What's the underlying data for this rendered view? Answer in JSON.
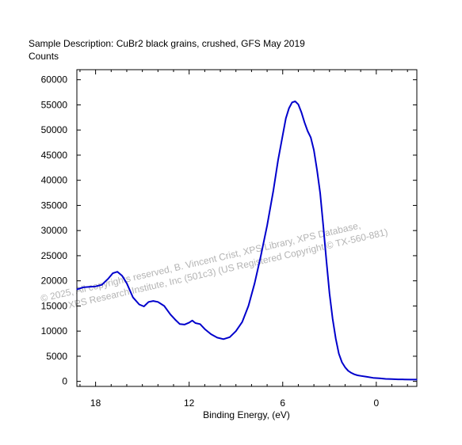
{
  "header": {
    "description": "Sample Description:  CuBr2 black grains, crushed, GFS May 2019",
    "counts_label": "Counts"
  },
  "watermark": {
    "line1": "© 2025,  All copyrights reserved,   B. Vincent Crist,  XPS Library, XPS Database,",
    "line2": "XPS Research Institute, Inc (501c3)   (US Registered Copyright © TX-560-881)"
  },
  "chart_data": {
    "type": "line",
    "title": "",
    "xlabel": "Binding Energy, (eV)",
    "ylabel": "Counts",
    "x_reversed": true,
    "xlim": [
      19.2,
      -2.6
    ],
    "ylim": [
      -1000,
      62000
    ],
    "x_ticks": [
      18,
      12,
      6,
      0
    ],
    "y_ticks": [
      0,
      5000,
      10000,
      15000,
      20000,
      25000,
      30000,
      35000,
      40000,
      45000,
      50000,
      55000,
      60000
    ],
    "grid": false,
    "line_color": "#0000cc",
    "series": [
      {
        "x": [
          19.2,
          18.8,
          18.4,
          18.0,
          17.6,
          17.2,
          16.9,
          16.6,
          16.3,
          16.0,
          15.6,
          15.2,
          14.9,
          14.6,
          14.3,
          14.0,
          13.6,
          13.2,
          12.9,
          12.6,
          12.3,
          12.0,
          11.8,
          11.6,
          11.3,
          11.0,
          10.6,
          10.2,
          9.8,
          9.4,
          9.0,
          8.6,
          8.2,
          7.8,
          7.4,
          7.0,
          6.6,
          6.3,
          6.0,
          5.8,
          5.6,
          5.4,
          5.2,
          5.0,
          4.8,
          4.6,
          4.4,
          4.2,
          4.0,
          3.8,
          3.6,
          3.4,
          3.2,
          3.0,
          2.8,
          2.6,
          2.4,
          2.2,
          2.0,
          1.8,
          1.6,
          1.4,
          1.2,
          1.0,
          0.6,
          0.2,
          -0.2,
          -0.6,
          -1.0,
          -1.4,
          -1.8,
          -2.2,
          -2.6
        ],
        "y": [
          18300,
          18700,
          18800,
          18900,
          19200,
          20400,
          21500,
          21800,
          21000,
          19500,
          16700,
          15300,
          14900,
          15800,
          16000,
          15800,
          15000,
          13300,
          12300,
          11400,
          11300,
          11700,
          12100,
          11600,
          11400,
          10400,
          9400,
          8700,
          8400,
          8800,
          10000,
          11800,
          15000,
          19500,
          25000,
          31000,
          38000,
          44000,
          49000,
          52300,
          54300,
          55500,
          55700,
          55100,
          53500,
          51500,
          49800,
          48500,
          46000,
          42000,
          37500,
          31000,
          24000,
          17500,
          12500,
          8500,
          5500,
          3800,
          2800,
          2100,
          1700,
          1400,
          1200,
          1100,
          900,
          700,
          600,
          500,
          450,
          400,
          380,
          360,
          350
        ]
      }
    ]
  }
}
